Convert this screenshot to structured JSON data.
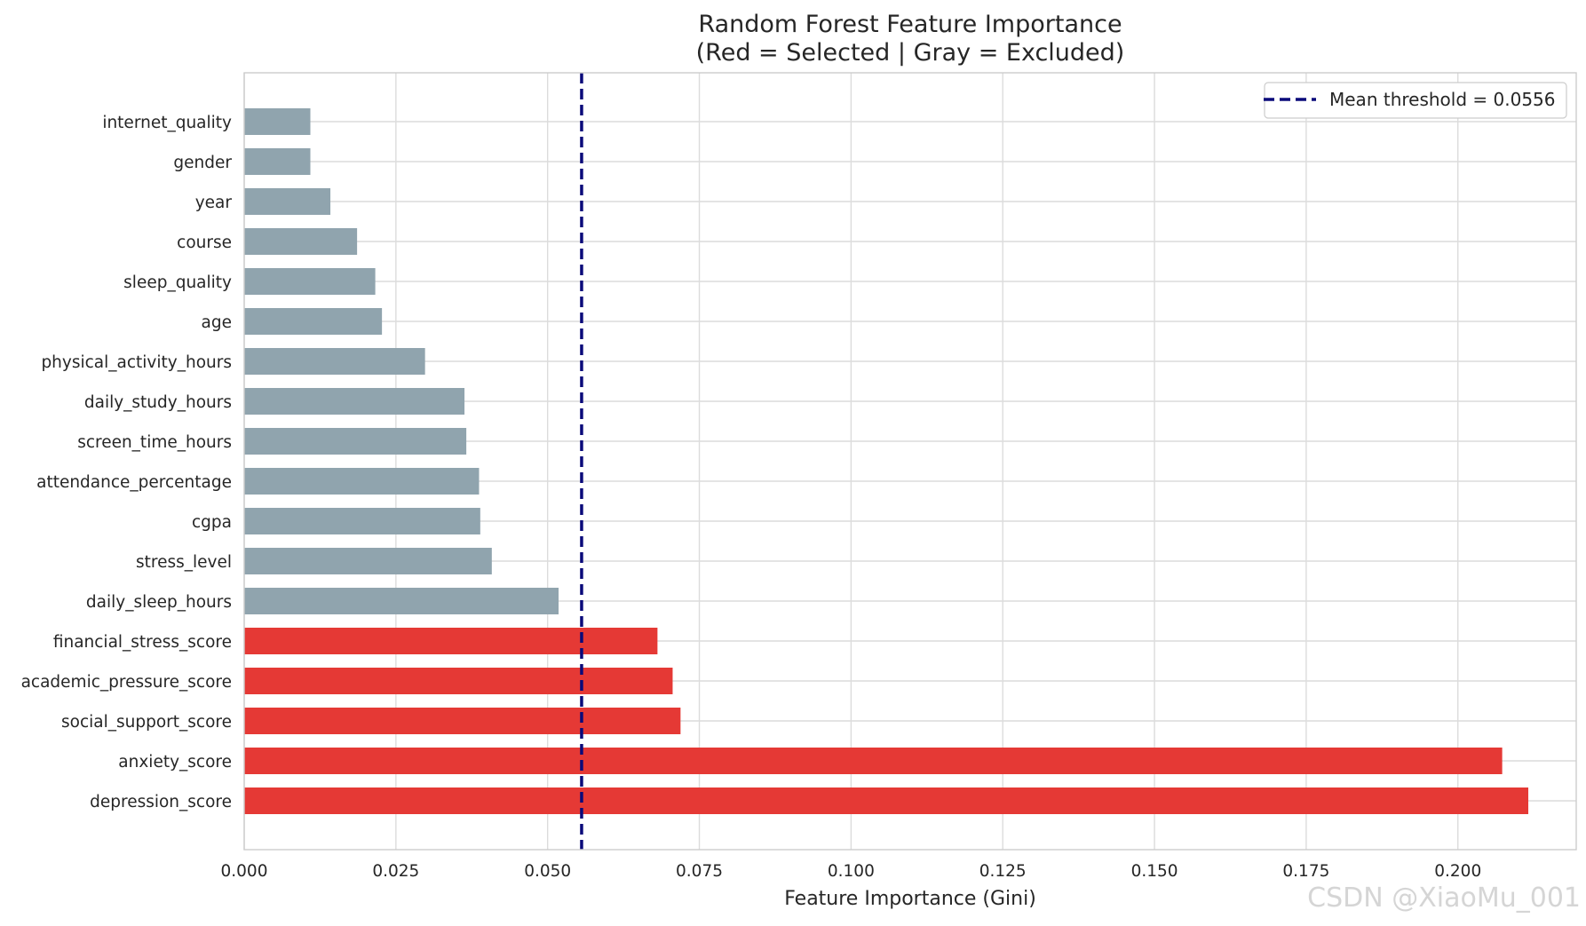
{
  "chart_data": {
    "type": "bar",
    "orientation": "horizontal",
    "title": [
      "Random Forest Feature Importance",
      "(Red = Selected  |  Gray = Excluded)"
    ],
    "xlabel": "Feature Importance (Gini)",
    "ylabel": "",
    "xlim": [
      0,
      0.2195
    ],
    "xticks": [
      0.0,
      0.025,
      0.05,
      0.075,
      0.1,
      0.125,
      0.15,
      0.175,
      0.2
    ],
    "xtick_labels": [
      "0.000",
      "0.025",
      "0.050",
      "0.075",
      "0.100",
      "0.125",
      "0.150",
      "0.175",
      "0.200"
    ],
    "grid": true,
    "threshold": {
      "value": 0.0556,
      "label": "Mean threshold = 0.0556",
      "color": "#0a0a7a",
      "style": "dashed"
    },
    "legend": {
      "placement": "top-right"
    },
    "colors": {
      "selected": "#e53935",
      "excluded": "#90a4ae"
    },
    "bars": [
      {
        "feature": "internet_quality",
        "value": 0.0109,
        "status": "excluded"
      },
      {
        "feature": "gender",
        "value": 0.0109,
        "status": "excluded"
      },
      {
        "feature": "year",
        "value": 0.0142,
        "status": "excluded"
      },
      {
        "feature": "course",
        "value": 0.0186,
        "status": "excluded"
      },
      {
        "feature": "sleep_quality",
        "value": 0.0216,
        "status": "excluded"
      },
      {
        "feature": "age",
        "value": 0.0227,
        "status": "excluded"
      },
      {
        "feature": "physical_activity_hours",
        "value": 0.0298,
        "status": "excluded"
      },
      {
        "feature": "daily_study_hours",
        "value": 0.0363,
        "status": "excluded"
      },
      {
        "feature": "screen_time_hours",
        "value": 0.0366,
        "status": "excluded"
      },
      {
        "feature": "attendance_percentage",
        "value": 0.0387,
        "status": "excluded"
      },
      {
        "feature": "cgpa",
        "value": 0.0389,
        "status": "excluded"
      },
      {
        "feature": "stress_level",
        "value": 0.0408,
        "status": "excluded"
      },
      {
        "feature": "daily_sleep_hours",
        "value": 0.0518,
        "status": "excluded"
      },
      {
        "feature": "financial_stress_score",
        "value": 0.0681,
        "status": "selected"
      },
      {
        "feature": "academic_pressure_score",
        "value": 0.0706,
        "status": "selected"
      },
      {
        "feature": "social_support_score",
        "value": 0.0719,
        "status": "selected"
      },
      {
        "feature": "anxiety_score",
        "value": 0.2073,
        "status": "selected"
      },
      {
        "feature": "depression_score",
        "value": 0.2116,
        "status": "selected"
      }
    ]
  },
  "watermark": "CSDN @XiaoMu_001"
}
